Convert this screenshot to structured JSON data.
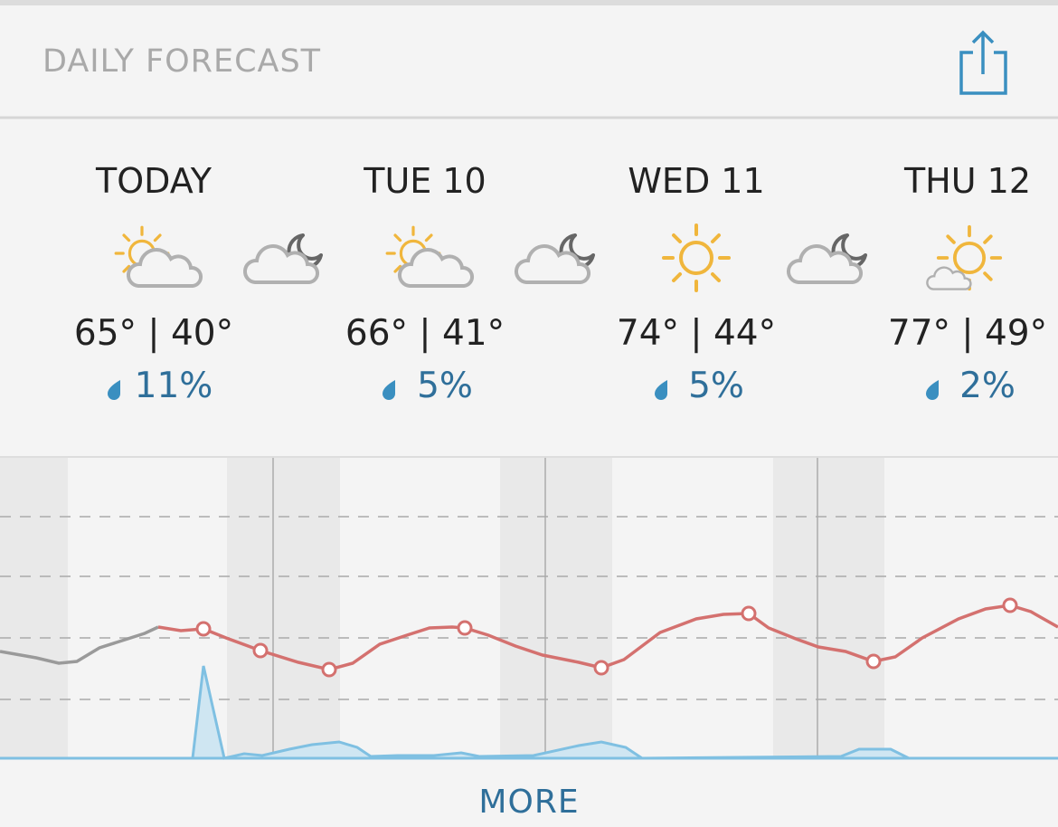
{
  "header": {
    "title": "DAILY FORECAST"
  },
  "days": [
    {
      "label": "TODAY",
      "temps": "65° | 40°",
      "precip": "11%"
    },
    {
      "label": "TUE 10",
      "temps": "66° | 41°",
      "precip": "5%"
    },
    {
      "label": "WED 11",
      "temps": "74° | 44°",
      "precip": "5%"
    },
    {
      "label": "THU 12",
      "temps": "77° | 49°",
      "precip": "2%"
    }
  ],
  "button": "MORE"
}
